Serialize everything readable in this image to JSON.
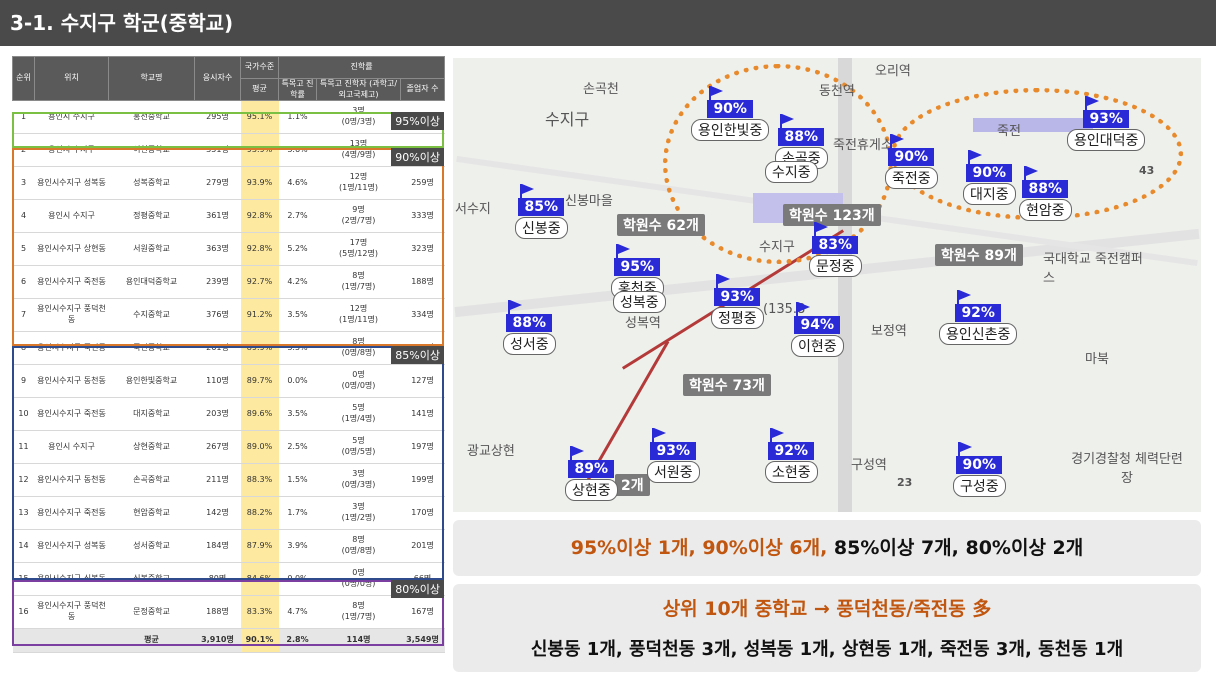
{
  "title": "3-1. 수지구 학군(중학교)",
  "table": {
    "headers": {
      "rank": "순위",
      "location": "위치",
      "school": "학교명",
      "applicants": "응시자수",
      "national": "국가수준",
      "advance": "진학률",
      "avg": "평균",
      "special_hs": "특목고 진학률",
      "special_detail": "특목고 진학자 (과학고/외고국제고)",
      "applicant_n": "졸업자 수"
    },
    "rows": [
      {
        "rank": "1",
        "loc": "용인시 수지구",
        "school": "홍천중학교",
        "apps": "295명",
        "avg": "95.1%",
        "rate": "1.1%",
        "count": "3명",
        "detail": "(0명/3명)",
        "grads": ""
      },
      {
        "rank": "2",
        "loc": "용인시 수지구",
        "school": "이현중학교",
        "apps": "351명",
        "avg": "93.9%",
        "rate": "3.6%",
        "count": "13명",
        "detail": "(4명/9명)",
        "grads": ""
      },
      {
        "rank": "3",
        "loc": "용인시수지구 성복동",
        "school": "성복중학교",
        "apps": "279명",
        "avg": "93.9%",
        "rate": "4.6%",
        "count": "12명",
        "detail": "(1명/11명)",
        "grads": "259명"
      },
      {
        "rank": "4",
        "loc": "용인시 수지구",
        "school": "정평중학교",
        "apps": "361명",
        "avg": "92.8%",
        "rate": "2.7%",
        "count": "9명",
        "detail": "(2명/7명)",
        "grads": "333명"
      },
      {
        "rank": "5",
        "loc": "용인시수지구 상현동",
        "school": "서원중학교",
        "apps": "363명",
        "avg": "92.8%",
        "rate": "5.2%",
        "count": "17명",
        "detail": "(5명/12명)",
        "grads": "323명"
      },
      {
        "rank": "6",
        "loc": "용인시수지구 죽전동",
        "school": "용인대덕중학교",
        "apps": "239명",
        "avg": "92.7%",
        "rate": "4.2%",
        "count": "8명",
        "detail": "(1명/7명)",
        "grads": "188명"
      },
      {
        "rank": "7",
        "loc": "용인시수지구 풍덕천동",
        "school": "수지중학교",
        "apps": "376명",
        "avg": "91.2%",
        "rate": "3.5%",
        "count": "12명",
        "detail": "(1명/11명)",
        "grads": "334명"
      },
      {
        "rank": "8",
        "loc": "용인시수지구 죽전동",
        "school": "죽전중학교",
        "apps": "261명",
        "avg": "89.9%",
        "rate": "3.5%",
        "count": "8명",
        "detail": "(0명/8명)",
        "grads": "224명"
      },
      {
        "rank": "9",
        "loc": "용인시수지구 동천동",
        "school": "용인한빛중학교",
        "apps": "110명",
        "avg": "89.7%",
        "rate": "0.0%",
        "count": "0명",
        "detail": "(0명/0명)",
        "grads": "127명"
      },
      {
        "rank": "10",
        "loc": "용인시수지구 죽전동",
        "school": "대지중학교",
        "apps": "203명",
        "avg": "89.6%",
        "rate": "3.5%",
        "count": "5명",
        "detail": "(1명/4명)",
        "grads": "141명"
      },
      {
        "rank": "11",
        "loc": "용인시 수지구",
        "school": "상현중학교",
        "apps": "267명",
        "avg": "89.0%",
        "rate": "2.5%",
        "count": "5명",
        "detail": "(0명/5명)",
        "grads": "197명"
      },
      {
        "rank": "12",
        "loc": "용인시수지구 동천동",
        "school": "손곡중학교",
        "apps": "211명",
        "avg": "88.3%",
        "rate": "1.5%",
        "count": "3명",
        "detail": "(0명/3명)",
        "grads": "199명"
      },
      {
        "rank": "13",
        "loc": "용인시수지구 죽전동",
        "school": "현암중학교",
        "apps": "142명",
        "avg": "88.2%",
        "rate": "1.7%",
        "count": "3명",
        "detail": "(1명/2명)",
        "grads": "170명"
      },
      {
        "rank": "14",
        "loc": "용인시수지구 성복동",
        "school": "성서중학교",
        "apps": "184명",
        "avg": "87.9%",
        "rate": "3.9%",
        "count": "8명",
        "detail": "(0명/8명)",
        "grads": "201명"
      },
      {
        "rank": "15",
        "loc": "용인시수지구 신봉동",
        "school": "신봉중학교",
        "apps": "80명",
        "avg": "84.6%",
        "rate": "0.0%",
        "count": "0명",
        "detail": "(0명/0명)",
        "grads": "66명"
      },
      {
        "rank": "16",
        "loc": "용인시수지구 풍덕천동",
        "school": "문정중학교",
        "apps": "188명",
        "avg": "83.3%",
        "rate": "4.7%",
        "count": "8명",
        "detail": "(1명/7명)",
        "grads": "167명"
      }
    ],
    "footer": {
      "label": "평균",
      "apps": "3,910명",
      "avg": "90.1%",
      "rate": "2.8%",
      "count": "114명",
      "grads": "3,549명"
    },
    "groups": [
      "95%이상",
      "90%이상",
      "85%이상",
      "80%이상"
    ]
  },
  "map": {
    "schools": [
      {
        "pct": "90%",
        "name": "용인한빛중"
      },
      {
        "pct": "88%",
        "name": "손곡중"
      },
      {
        "pct": "",
        "name": "수지중"
      },
      {
        "pct": "93%",
        "name": "용인대덕중"
      },
      {
        "pct": "90%",
        "name": "죽전중"
      },
      {
        "pct": "90%",
        "name": "대지중"
      },
      {
        "pct": "88%",
        "name": "현암중"
      },
      {
        "pct": "85%",
        "name": "신봉중"
      },
      {
        "pct": "83%",
        "name": "문정중"
      },
      {
        "pct": "95%",
        "name": "홍천중"
      },
      {
        "pct": "",
        "name": "성복중"
      },
      {
        "pct": "93%",
        "name": "정평중"
      },
      {
        "pct": "94%",
        "name": "이현중"
      },
      {
        "pct": "88%",
        "name": "성서중"
      },
      {
        "pct": "92%",
        "name": "용인신촌중"
      },
      {
        "pct": "89%",
        "name": "상현중"
      },
      {
        "pct": "93%",
        "name": "서원중"
      },
      {
        "pct": "92%",
        "name": "소현중"
      },
      {
        "pct": "90%",
        "name": "구성중"
      }
    ],
    "academies": [
      "학원수 62개",
      "학원수 123개",
      "학원수 89개",
      "학원수 73개",
      "2개"
    ],
    "labels": [
      "손곡천",
      "수지구",
      "오리역",
      "동천역",
      "죽전휴게소",
      "죽전",
      "서수지",
      "신봉마을",
      "성복역",
      "보정역",
      "마북",
      "구성역",
      "경기경찰청 체력단련장",
      "국대학교 죽전캠퍼스",
      "광교상현",
      "수지구",
      "23",
      "43",
      "(135.8"
    ]
  },
  "summary": {
    "line1_a": "95%이상 1개, 90%이상 6개,",
    "line1_b": " 85%이상 7개, 80%이상 2개",
    "line2": "상위 10개 중학교 → 풍덕천동/죽전동 多",
    "line3": "신봉동 1개, 풍덕천동 3개, 성복동 1개, 상현동 1개, 죽전동 3개, 동천동 1개"
  }
}
